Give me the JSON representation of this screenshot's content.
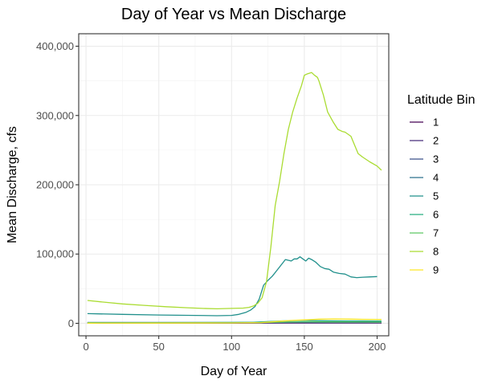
{
  "chart_data": {
    "type": "line",
    "title": "Day of Year vs Mean Discharge",
    "xlabel": "Day of Year",
    "ylabel": "Mean Discharge, cfs",
    "xlim": [
      -5,
      208
    ],
    "ylim": [
      -18000,
      418000
    ],
    "x_ticks": [
      0,
      50,
      100,
      150,
      200
    ],
    "y_ticks": [
      0,
      100000,
      200000,
      300000,
      400000
    ],
    "x_tick_labels": [
      "0",
      "50",
      "100",
      "150",
      "200"
    ],
    "y_tick_labels": [
      "0",
      "100,000",
      "200,000",
      "300,000",
      "400,000"
    ],
    "grid": true,
    "legend": {
      "title": "Latitude Bin",
      "position": "right"
    },
    "series": [
      {
        "name": "1",
        "color": "#440154",
        "x": [
          1,
          50,
          100,
          150,
          200,
          203
        ],
        "y": [
          300,
          300,
          300,
          400,
          400,
          400
        ]
      },
      {
        "name": "2",
        "color": "#472D7B",
        "x": [
          1,
          50,
          100,
          150,
          200,
          203
        ],
        "y": [
          600,
          600,
          700,
          900,
          800,
          800
        ]
      },
      {
        "name": "3",
        "color": "#3B528B",
        "x": [
          1,
          50,
          100,
          140,
          150,
          170,
          200,
          203
        ],
        "y": [
          800,
          800,
          900,
          1200,
          1300,
          1300,
          1200,
          1200
        ]
      },
      {
        "name": "4",
        "color": "#2C728E",
        "x": [
          1,
          50,
          100,
          125,
          140,
          150,
          170,
          200,
          203
        ],
        "y": [
          1200,
          1200,
          1300,
          1500,
          2000,
          2200,
          2300,
          2100,
          2100
        ]
      },
      {
        "name": "5",
        "color": "#21908C",
        "x": [
          1,
          25,
          50,
          75,
          90,
          100,
          105,
          110,
          113,
          116,
          119,
          122,
          125,
          128,
          131,
          134,
          137,
          139,
          141,
          143,
          145,
          147,
          149,
          151,
          153,
          155,
          158,
          161,
          164,
          167,
          170,
          174,
          178,
          182,
          186,
          190,
          195,
          200
        ],
        "y": [
          14000,
          13000,
          12000,
          11500,
          11000,
          11500,
          13000,
          16000,
          19000,
          24000,
          35000,
          55000,
          62000,
          68000,
          76000,
          84000,
          92000,
          91000,
          90000,
          93000,
          93000,
          96000,
          93000,
          90000,
          94000,
          92000,
          88000,
          82000,
          79000,
          78000,
          74000,
          72000,
          71000,
          67000,
          66000,
          66500,
          67000,
          67500
        ]
      },
      {
        "name": "6",
        "color": "#27AD81",
        "x": [
          1,
          50,
          100,
          115,
          125,
          135,
          145,
          150,
          160,
          170,
          180,
          190,
          200,
          203
        ],
        "y": [
          1000,
          1000,
          1200,
          1500,
          2500,
          3500,
          4000,
          4000,
          3800,
          3600,
          3500,
          3400,
          3300,
          3300
        ]
      },
      {
        "name": "7",
        "color": "#5DC863",
        "x": [
          1,
          50,
          100,
          120,
          130,
          140,
          150,
          160,
          170,
          180,
          190,
          200,
          203
        ],
        "y": [
          500,
          500,
          600,
          1000,
          1600,
          2000,
          2200,
          2100,
          2000,
          1900,
          1800,
          1700,
          1700
        ]
      },
      {
        "name": "8",
        "color": "#AADC32",
        "x": [
          1,
          10,
          25,
          40,
          55,
          70,
          80,
          90,
          100,
          108,
          112,
          115,
          118,
          121,
          124,
          127,
          130,
          133,
          136,
          139,
          142,
          145,
          148,
          150,
          152,
          155,
          157,
          159,
          160,
          163,
          166,
          170,
          173,
          176,
          178,
          182,
          185,
          187,
          190,
          195,
          200,
          203
        ],
        "y": [
          33000,
          31000,
          28000,
          26000,
          24000,
          22500,
          21500,
          21000,
          21500,
          22000,
          23000,
          25000,
          29000,
          37000,
          60000,
          110000,
          170000,
          205000,
          245000,
          280000,
          305000,
          325000,
          343000,
          358000,
          360000,
          362000,
          358000,
          355000,
          350000,
          330000,
          305000,
          290000,
          280000,
          277000,
          276000,
          270000,
          255000,
          245000,
          240000,
          233000,
          227000,
          221000
        ]
      },
      {
        "name": "9",
        "color": "#FDE725",
        "x": [
          1,
          50,
          100,
          120,
          130,
          140,
          150,
          160,
          170,
          180,
          190,
          200,
          203
        ],
        "y": [
          200,
          300,
          500,
          1000,
          2500,
          4000,
          5000,
          6000,
          6300,
          6100,
          5800,
          5600,
          5500
        ]
      }
    ]
  }
}
